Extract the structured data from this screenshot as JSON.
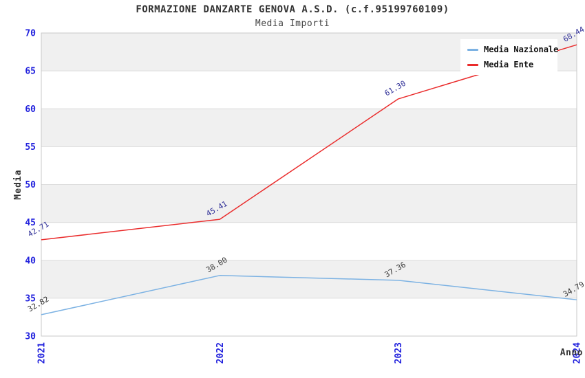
{
  "header": {
    "title": "FORMAZIONE DANZARTE GENOVA A.S.D. (c.f.95199760109)",
    "subtitle": "Media Importi"
  },
  "chart_data": {
    "type": "line",
    "title": "FORMAZIONE DANZARTE GENOVA A.S.D. (c.f.95199760109)",
    "subtitle": "Media Importi",
    "xlabel": "Anno",
    "ylabel": "Media",
    "categories": [
      "2021",
      "2022",
      "2023",
      "2024"
    ],
    "series": [
      {
        "name": "Media Nazionale",
        "color": "#7cb2e3",
        "label_color": "#333333",
        "values": [
          32.82,
          38.0,
          37.36,
          34.79
        ]
      },
      {
        "name": "Media Ente",
        "color": "#ea2c2c",
        "label_color": "#333399",
        "values": [
          42.71,
          45.41,
          61.3,
          68.44
        ]
      }
    ],
    "ylim": [
      30,
      70
    ],
    "ytick_step": 5,
    "grid": "horizontal-bands",
    "legend_position": "top-right",
    "colors": {
      "tick_label": "#2222dd",
      "band": "#f0f0f0",
      "gridline": "#dcdcdc",
      "plot_border": "#c9c9c9",
      "axis_label": "#333333"
    }
  }
}
